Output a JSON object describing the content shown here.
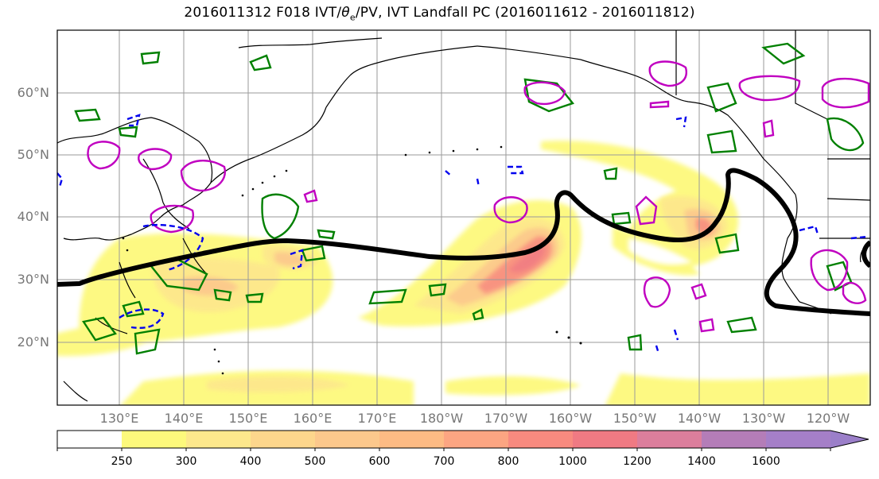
{
  "title": "2016011312 F018 IVT/θe/PV, IVT Landfall PC (2016011612 - 2016011812)",
  "title_parts": {
    "pre": "2016011312 F018 IVT/",
    "theta": "θ",
    "sub_e": "e",
    "post": "/PV, IVT Landfall PC (2016011612 - 2016011812)"
  },
  "lat_labels": [
    "60°N",
    "50°N",
    "40°N",
    "30°N",
    "20°N"
  ],
  "lon_labels": [
    "130°E",
    "140°E",
    "150°E",
    "160°E",
    "170°E",
    "180°W",
    "170°W",
    "160°W",
    "150°W",
    "140°W",
    "130°W",
    "120°W"
  ],
  "colorbar": {
    "labels": [
      "250",
      "300",
      "400",
      "500",
      "600",
      "700",
      "800",
      "1000",
      "1200",
      "1400",
      "1600"
    ],
    "colors": [
      "#ffffff",
      "#fdf97c",
      "#fde88c",
      "#fdd68c",
      "#fcc88c",
      "#fdbb84",
      "#fca582",
      "#f88a7f",
      "#f07a83",
      "#dc7e9c",
      "#b47db8",
      "#a57fc8",
      "#9b7fc9"
    ]
  },
  "legend_colors": {
    "pv_contour": "#008000",
    "theta_e_contour": "#c000c0",
    "negative_contour": "#0000ee",
    "landfall_pc_line": "#000000"
  }
}
